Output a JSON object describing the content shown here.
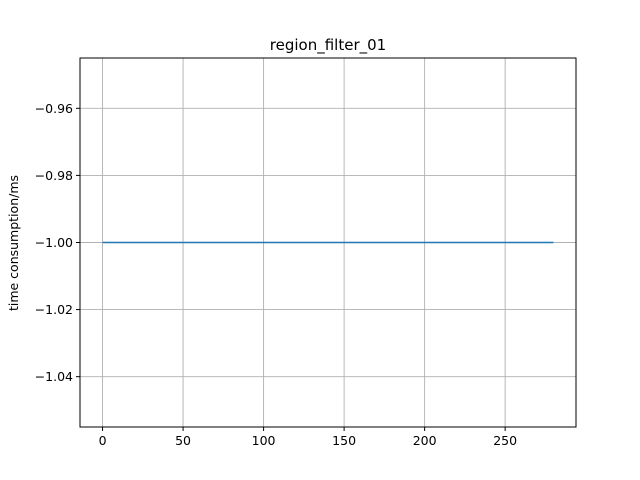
{
  "chart_data": {
    "type": "line",
    "title": "region_filter_01",
    "xlabel": "",
    "ylabel": "time consumption/ms",
    "xlim": [
      -14,
      294
    ],
    "ylim": [
      -1.055,
      -0.945
    ],
    "x_ticks": [
      0,
      50,
      100,
      150,
      200,
      250
    ],
    "x_tick_labels": [
      "0",
      "50",
      "100",
      "150",
      "200",
      "250"
    ],
    "y_ticks": [
      -0.96,
      -0.98,
      -1.0,
      -1.02,
      -1.04
    ],
    "y_tick_labels": [
      "−0.96",
      "−0.98",
      "−1.00",
      "−1.02",
      "−1.04"
    ],
    "grid": true,
    "series": [
      {
        "color": "#1f77b4",
        "x": [
          0,
          280
        ],
        "y": [
          -1.0,
          -1.0
        ]
      }
    ]
  }
}
